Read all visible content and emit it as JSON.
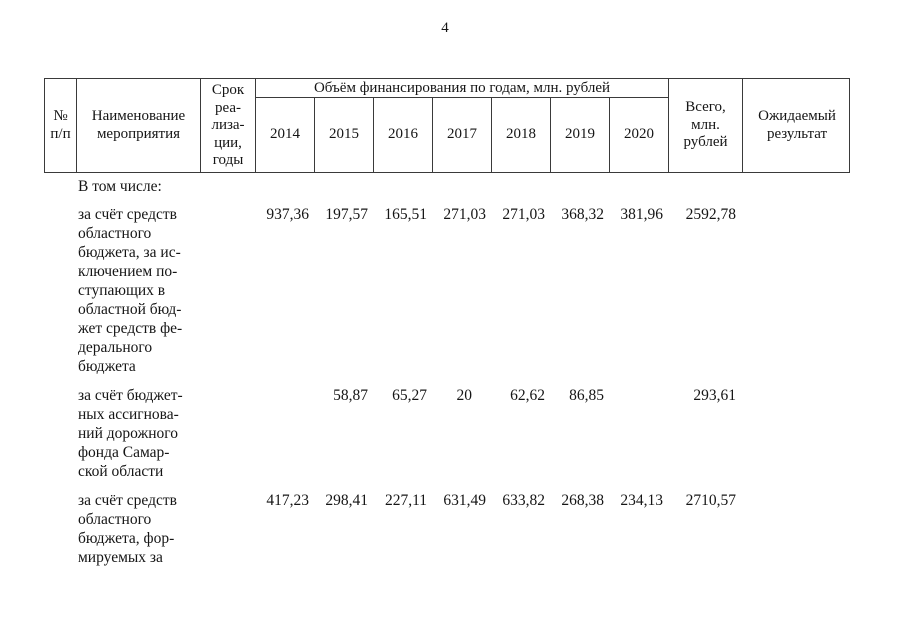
{
  "page": {
    "number": "4"
  },
  "table": {
    "header": {
      "col_num": "№\nп/п",
      "col_name": "Наименование\nмероприятия",
      "col_term": "Срок\nреа-\nлиза-\nции,\nгоды",
      "col_span": "Объём финансирования по годам, млн. рублей",
      "years": [
        "2014",
        "2015",
        "2016",
        "2017",
        "2018",
        "2019",
        "2020"
      ],
      "col_total": "Всего,\nмлн.\nрублей",
      "col_result": "Ожидаемый\nрезультат"
    },
    "section_label": "В том числе:",
    "rows": [
      {
        "name": "за счёт средств\nобластного\nбюджета, за ис-\nключением по-\nступающих в\nобластной бюд-\nжет средств фе-\nдерального\nбюджета",
        "values": [
          "937,36",
          "197,57",
          "165,51",
          "271,03",
          "271,03",
          "368,32",
          "381,96"
        ],
        "total": "2592,78"
      },
      {
        "name": "за счёт бюджет-\nных ассигнова-\nний дорожного\nфонда Самар-\nской области",
        "values": [
          "",
          "58,87",
          "65,27",
          "20",
          "62,62",
          "86,85",
          ""
        ],
        "total": "293,61"
      },
      {
        "name": "за счёт средств\nобластного\nбюджета, фор-\nмируемых за",
        "values": [
          "417,23",
          "298,41",
          "227,11",
          "631,49",
          "633,82",
          "268,38",
          "234,13"
        ],
        "total": "2710,57"
      }
    ]
  }
}
